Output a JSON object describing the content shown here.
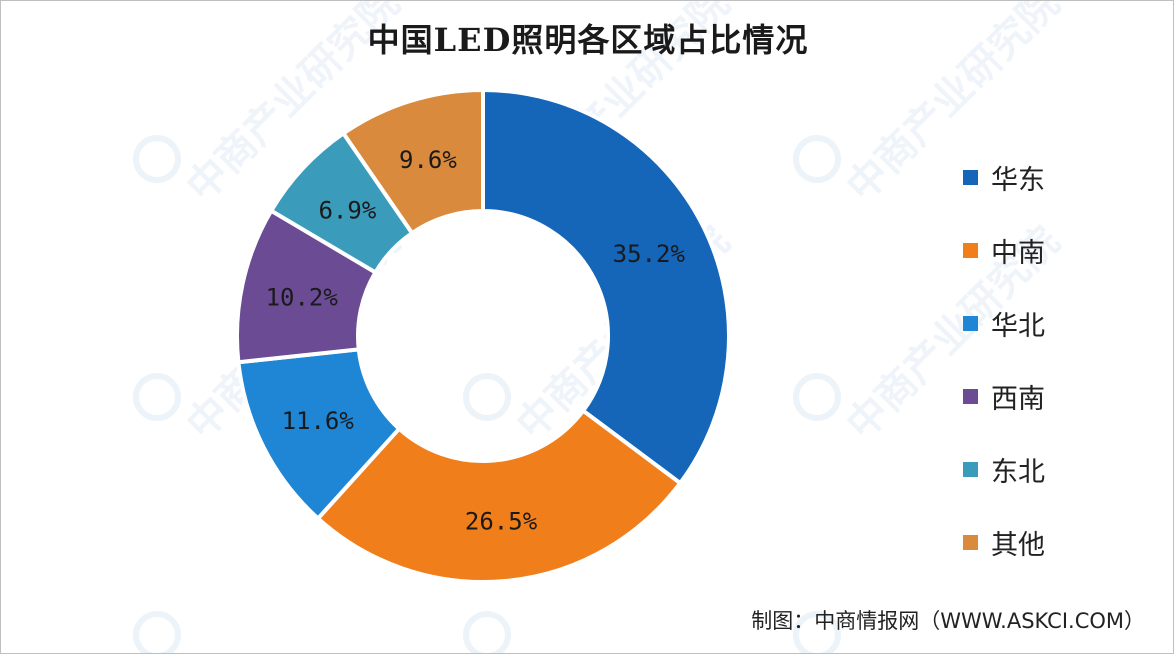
{
  "chart_data": {
    "type": "pie",
    "title": "中国LED照明各区域占比情况",
    "categories": [
      "华东",
      "中南",
      "华北",
      "西南",
      "东北",
      "其他"
    ],
    "values": [
      35.2,
      26.5,
      11.6,
      10.2,
      6.9,
      9.6
    ],
    "data_labels": [
      "35.2%",
      "26.5%",
      "11.6%",
      "10.2%",
      "6.9%",
      "9.6%"
    ],
    "colors": [
      "#1565b8",
      "#f07e1b",
      "#1f86d6",
      "#6b4c94",
      "#3a9bbb",
      "#d98a3c"
    ],
    "donut": true,
    "start": "12 o'clock",
    "direction": "clockwise",
    "legend_position": "right"
  },
  "source": "制图：中商情报网（WWW.ASKCI.COM）",
  "watermark": {
    "text": "中商产业研究院"
  }
}
